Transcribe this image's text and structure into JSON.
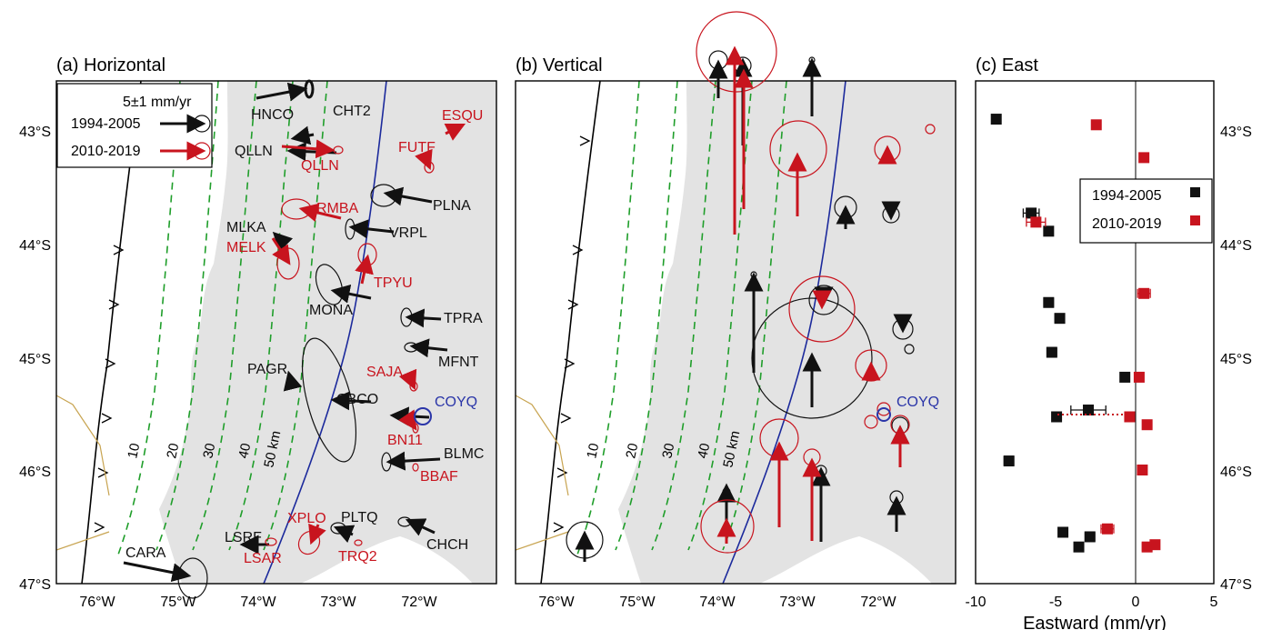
{
  "panels": {
    "a": {
      "title": "(a) Horizontal",
      "legend": {
        "scale": "5±1 mm/yr",
        "period_1": "1994-2005",
        "period_2": "2010-2019"
      },
      "contours": [
        "10",
        "20",
        "30",
        "40",
        "50 km"
      ]
    },
    "b": {
      "title": "(b) Vertical",
      "contours": [
        "10",
        "20",
        "30",
        "40",
        "50 km"
      ]
    },
    "c": {
      "title": "(c) East",
      "xlabel": "Eastward (mm/yr)",
      "xticks": [
        "-10",
        "-5",
        "0",
        "5"
      ],
      "legend": {
        "period_1": "1994-2005",
        "period_2": "2010-2019"
      }
    }
  },
  "map_axes": {
    "lon_ticks": [
      "76°W",
      "75°W",
      "74°W",
      "73°W",
      "72°W"
    ],
    "lat_ticks": [
      "43°S",
      "44°S",
      "45°S",
      "46°S",
      "47°S"
    ]
  },
  "stations_black": [
    "HNCO",
    "CHT2",
    "QLLN",
    "PLNA",
    "VRPL",
    "MLKA",
    "MONA",
    "TPRA",
    "MFNT",
    "PAGR",
    "CBCO",
    "BLMC",
    "PLTQ",
    "CHCH",
    "LSRF",
    "CARA"
  ],
  "stations_red": [
    "ESQU",
    "FUTF",
    "QLLN",
    "RMBA",
    "MELK",
    "TPYU",
    "SAJA",
    "BN11",
    "BBAF",
    "XPLO",
    "TRQ2",
    "LSAR"
  ],
  "stations_blue": [
    "COYQ"
  ],
  "colors": {
    "black": "#111111",
    "red": "#c8141e",
    "blue": "#2a35a8",
    "land": "#e3e3e3",
    "contour": "#1f9e2a",
    "trench": "#000000",
    "fault": "#1c2a9c"
  },
  "chart_data": {
    "type": "scatter",
    "title": "(c) East",
    "xlabel": "Eastward (mm/yr)",
    "ylabel": "",
    "xlim": [
      -10,
      5
    ],
    "ylim": [
      -47,
      -42.5
    ],
    "series": [
      {
        "name": "1994-2005",
        "color": "#111111",
        "points": [
          {
            "x": -8.7,
            "y": -42.88,
            "err": 0
          },
          {
            "x": -6.5,
            "y": -43.71,
            "err": 0.5
          },
          {
            "x": -5.4,
            "y": -43.87,
            "err": 0
          },
          {
            "x": -5.4,
            "y": -44.5,
            "err": 0.3
          },
          {
            "x": -4.7,
            "y": -44.64,
            "err": 0.3
          },
          {
            "x": -5.2,
            "y": -44.94,
            "err": 0.3
          },
          {
            "x": -0.6,
            "y": -45.16,
            "err": 0
          },
          {
            "x": -2.9,
            "y": -45.45,
            "err": 1.1
          },
          {
            "x": -4.9,
            "y": -45.51,
            "err": 0
          },
          {
            "x": -7.9,
            "y": -45.9,
            "err": 0.3
          },
          {
            "x": -4.5,
            "y": -46.53,
            "err": 0
          },
          {
            "x": -2.8,
            "y": -46.57,
            "err": 0.3
          },
          {
            "x": -3.5,
            "y": -46.66,
            "err": 0
          }
        ]
      },
      {
        "name": "2010-2019",
        "color": "#c8141e",
        "points": [
          {
            "x": -2.4,
            "y": -42.93,
            "err": 0
          },
          {
            "x": 0.6,
            "y": -43.22,
            "err": 0
          },
          {
            "x": -6.2,
            "y": -43.79,
            "err": 0.6
          },
          {
            "x": 0.6,
            "y": -44.42,
            "err": 0.4
          },
          {
            "x": 0.3,
            "y": -45.16,
            "err": 0.2
          },
          {
            "x": -0.3,
            "y": -45.51,
            "err": 0
          },
          {
            "x": 0.8,
            "y": -45.58,
            "err": 0
          },
          {
            "x": 0.5,
            "y": -45.98,
            "err": 0
          },
          {
            "x": -1.7,
            "y": -46.5,
            "err": 0.4
          },
          {
            "x": 0.8,
            "y": -46.66,
            "err": 0.3
          },
          {
            "x": 1.3,
            "y": -46.64,
            "err": 0
          }
        ]
      }
    ]
  }
}
